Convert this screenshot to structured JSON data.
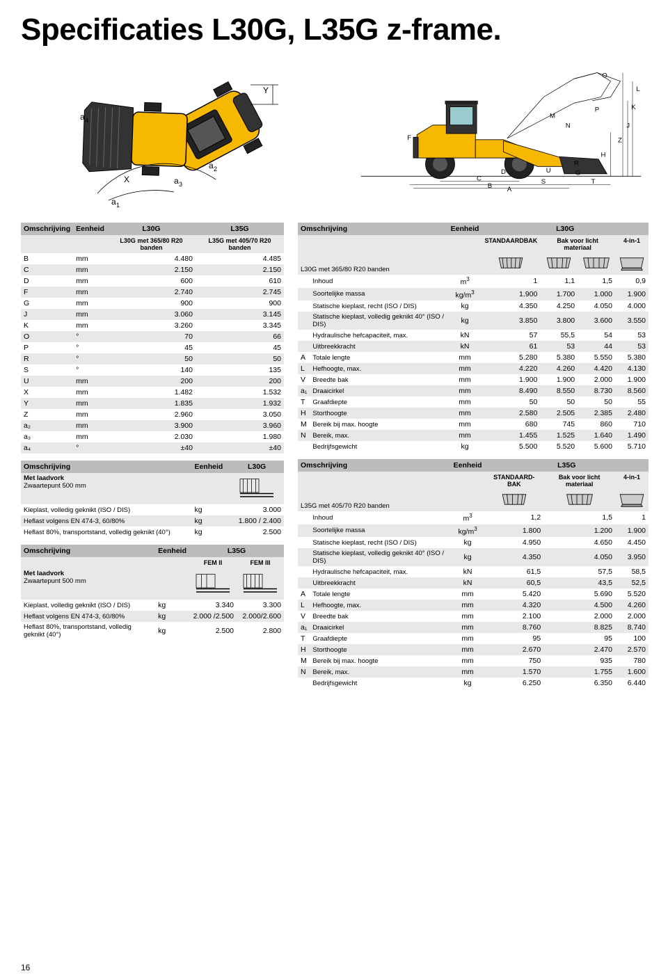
{
  "page_number": "16",
  "title": "Specificaties L30G, L35G z-frame.",
  "colors": {
    "header_bg": "#bcbcbc",
    "row_odd": "#e8e8e8",
    "row_even": "#ffffff",
    "machine_yellow": "#f6b800",
    "machine_dark": "#333333",
    "text": "#000000"
  },
  "dims_table": {
    "headers": [
      "Omschrijving",
      "Eenheid",
      "L30G",
      "L35G"
    ],
    "subheaders": [
      "",
      "",
      "L30G met 365/80 R20 banden",
      "L35G met 405/70 R20 banden"
    ],
    "rows": [
      [
        "B",
        "mm",
        "4.480",
        "4.485"
      ],
      [
        "C",
        "mm",
        "2.150",
        "2.150"
      ],
      [
        "D",
        "mm",
        "600",
        "610"
      ],
      [
        "F",
        "mm",
        "2.740",
        "2.745"
      ],
      [
        "G",
        "mm",
        "900",
        "900"
      ],
      [
        "J",
        "mm",
        "3.060",
        "3.145"
      ],
      [
        "K",
        "mm",
        "3.260",
        "3.345"
      ],
      [
        "O",
        "°",
        "70",
        "66"
      ],
      [
        "P",
        "°",
        "45",
        "45"
      ],
      [
        "R",
        "°",
        "50",
        "50"
      ],
      [
        "S",
        "°",
        "140",
        "135"
      ],
      [
        "U",
        "mm",
        "200",
        "200"
      ],
      [
        "X",
        "mm",
        "1.482",
        "1.532"
      ],
      [
        "Y",
        "mm",
        "1.835",
        "1.932"
      ],
      [
        "Z",
        "mm",
        "2.960",
        "3.050"
      ],
      [
        "a₂",
        "mm",
        "3.900",
        "3.960"
      ],
      [
        "a₃",
        "mm",
        "2.030",
        "1.980"
      ],
      [
        "a₄",
        "°",
        "±40",
        "±40"
      ]
    ]
  },
  "fork_l30g": {
    "headers": [
      "Omschrijving",
      "Eenheid",
      "L30G"
    ],
    "subtitle": "Met laadvork",
    "subtitle2": "Zwaartepunt 500 mm",
    "rows": [
      [
        "Kieplast, volledig geknikt (ISO / DIS)",
        "kg",
        "3.000"
      ],
      [
        "Heflast volgens EN 474-3, 60/80%",
        "kg",
        "1.800 / 2.400"
      ],
      [
        "Heflast 80%, transportstand, volledig geknikt (40°)",
        "kg",
        "2.500"
      ]
    ]
  },
  "fork_l35g": {
    "headers": [
      "Omschrijving",
      "Eenheid",
      "L35G"
    ],
    "subcols": [
      "FEM II",
      "FEM III"
    ],
    "subtitle": "Met laadvork",
    "subtitle2": "Zwaartepunt 500 mm",
    "rows": [
      [
        "Kieplast, volledig geknikt (ISO / DIS)",
        "kg",
        "3.340",
        "3.300"
      ],
      [
        "Heflast volgens EN 474-3, 60/80%",
        "kg",
        "2.000 /2.500",
        "2.000/2.600"
      ],
      [
        "Heflast 80%, transportstand, volledig geknikt (40°)",
        "kg",
        "2.500",
        "2.800"
      ]
    ]
  },
  "bucket_l30g": {
    "headers": [
      "Omschrijving",
      "Eenheid",
      "L30G"
    ],
    "subhead_cols": [
      "STANDAARDBAK",
      "Bak voor licht materiaal",
      "",
      "4-in-1"
    ],
    "model_line": "L30G met 365/80 R20 banden",
    "rows": [
      [
        "",
        "Inhoud",
        "m³",
        "1",
        "1,1",
        "1,5",
        "0,9"
      ],
      [
        "",
        "Soortelijke massa",
        "kg/m³",
        "1.900",
        "1.700",
        "1.000",
        "1.900"
      ],
      [
        "",
        "Statische kieplast, recht (ISO / DIS)",
        "kg",
        "4.350",
        "4.250",
        "4.050",
        "4.000"
      ],
      [
        "",
        "Statische kieplast, volledig geknikt 40° (ISO / DIS)",
        "kg",
        "3.850",
        "3.800",
        "3.600",
        "3.550"
      ],
      [
        "",
        "Hydraulische hefcapaciteit, max.",
        "kN",
        "57",
        "55,5",
        "54",
        "53"
      ],
      [
        "",
        "Uitbreekkracht",
        "kN",
        "61",
        "53",
        "44",
        "53"
      ],
      [
        "A",
        "Totale lengte",
        "mm",
        "5.280",
        "5.380",
        "5.550",
        "5.380"
      ],
      [
        "L",
        "Hefhoogte, max.",
        "mm",
        "4.220",
        "4.260",
        "4.420",
        "4.130"
      ],
      [
        "V",
        "Breedte bak",
        "mm",
        "1.900",
        "1.900",
        "2.000",
        "1.900"
      ],
      [
        "a₁",
        "Draaicirkel",
        "mm",
        "8.490",
        "8.550",
        "8.730",
        "8.560"
      ],
      [
        "T",
        "Graafdiepte",
        "mm",
        "50",
        "50",
        "50",
        "55"
      ],
      [
        "H",
        "Storthoogte",
        "mm",
        "2.580",
        "2.505",
        "2.385",
        "2.480"
      ],
      [
        "M",
        "Bereik bij max. hoogte",
        "mm",
        "680",
        "745",
        "860",
        "710"
      ],
      [
        "N",
        "Bereik, max.",
        "mm",
        "1.455",
        "1.525",
        "1.640",
        "1.490"
      ],
      [
        "",
        "Bedrijfsgewicht",
        "kg",
        "5.500",
        "5.520",
        "5.600",
        "5.710"
      ]
    ]
  },
  "bucket_l35g": {
    "headers": [
      "Omschrijving",
      "Eenheid",
      "L35G"
    ],
    "subhead_cols": [
      "STANDAARD-BAK",
      "Bak voor licht materiaal",
      "4-in-1"
    ],
    "model_line": "L35G met 405/70 R20 banden",
    "rows": [
      [
        "",
        "Inhoud",
        "m³",
        "1,2",
        "1,5",
        "1"
      ],
      [
        "",
        "Soortelijke massa",
        "kg/m³",
        "1.800",
        "1.200",
        "1.900"
      ],
      [
        "",
        "Statische kieplast, recht (ISO / DIS)",
        "kg",
        "4.950",
        "4.650",
        "4.450"
      ],
      [
        "",
        "Statische kieplast, volledig geknikt 40° (ISO / DIS)",
        "kg",
        "4.350",
        "4.050",
        "3.950"
      ],
      [
        "",
        "Hydraulische hefcapaciteit, max.",
        "kN",
        "61,5",
        "57,5",
        "58,5"
      ],
      [
        "",
        "Uitbreekkracht",
        "kN",
        "60,5",
        "43,5",
        "52,5"
      ],
      [
        "A",
        "Totale lengte",
        "mm",
        "5.420",
        "5.690",
        "5.520"
      ],
      [
        "L",
        "Hefhoogte, max.",
        "mm",
        "4.320",
        "4.500",
        "4.260"
      ],
      [
        "V",
        "Breedte bak",
        "mm",
        "2.100",
        "2.000",
        "2.000"
      ],
      [
        "a₁",
        "Draaicirkel",
        "mm",
        "8.760",
        "8.825",
        "8.740"
      ],
      [
        "T",
        "Graafdiepte",
        "mm",
        "95",
        "95",
        "100"
      ],
      [
        "H",
        "Storthoogte",
        "mm",
        "2.670",
        "2.470",
        "2.570"
      ],
      [
        "M",
        "Bereik bij max. hoogte",
        "mm",
        "750",
        "935",
        "780"
      ],
      [
        "N",
        "Bereik, max.",
        "mm",
        "1.570",
        "1.755",
        "1.600"
      ],
      [
        "",
        "Bedrijfsgewicht",
        "kg",
        "6.250",
        "6.350",
        "6.440"
      ]
    ]
  },
  "dim_labels_top": [
    "a₄",
    "X",
    "Y",
    "a₁",
    "a₂",
    "a₃"
  ],
  "dim_labels_side": [
    "A",
    "B",
    "C",
    "D",
    "F",
    "G",
    "H",
    "J",
    "K",
    "L",
    "M",
    "N",
    "O",
    "P",
    "R",
    "S",
    "T",
    "U",
    "Z"
  ]
}
